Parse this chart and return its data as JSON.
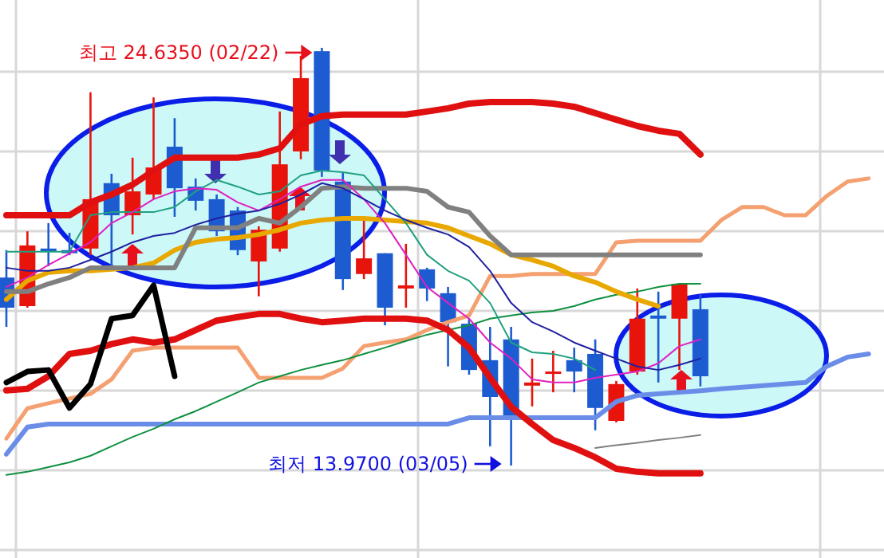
{
  "chart_data": {
    "type": "candlestick",
    "grid": true,
    "categories": [
      null,
      null,
      null,
      null,
      null,
      null,
      null,
      null,
      null,
      null,
      null,
      null,
      null,
      null,
      null,
      null,
      null,
      null,
      null,
      null,
      null,
      null,
      null,
      null,
      null,
      null,
      null,
      null,
      null,
      null,
      null,
      null,
      null,
      null,
      null,
      null,
      null,
      null,
      null,
      null,
      null,
      null
    ],
    "ohlc": [
      [
        18.77,
        19.47,
        17.51,
        18.0
      ],
      [
        18.04,
        19.95,
        18.0,
        19.59
      ],
      [
        19.51,
        20.16,
        19.06,
        19.43
      ],
      [
        19.47,
        19.91,
        19.34,
        19.39
      ],
      [
        19.51,
        23.5,
        19.34,
        20.77
      ],
      [
        21.18,
        21.42,
        19.02,
        20.36
      ],
      [
        20.36,
        21.83,
        19.87,
        20.97
      ],
      [
        20.89,
        23.37,
        20.77,
        21.58
      ],
      [
        22.11,
        22.84,
        20.32,
        21.05
      ],
      [
        21.09,
        21.3,
        20.48,
        20.73
      ],
      [
        20.77,
        20.89,
        19.83,
        19.95
      ],
      [
        20.48,
        20.57,
        19.34,
        19.47
      ],
      [
        19.18,
        20.08,
        18.29,
        19.99
      ],
      [
        19.51,
        23.01,
        19.43,
        21.66
      ],
      [
        21.99,
        24.43,
        21.79,
        23.86
      ],
      [
        24.55,
        24.635,
        21.34,
        21.5
      ],
      [
        21.22,
        21.46,
        18.45,
        18.73
      ],
      [
        18.86,
        20.24,
        18.73,
        19.26
      ],
      [
        19.39,
        19.39,
        17.55,
        18.0
      ],
      [
        18.49,
        19.63,
        18.0,
        18.57
      ],
      [
        18.98,
        19.02,
        18.17,
        18.49
      ],
      [
        18.37,
        18.53,
        16.5,
        17.63
      ],
      [
        17.59,
        17.72,
        16.29,
        16.41
      ],
      [
        16.66,
        17.51,
        14.46,
        15.72
      ],
      [
        17.19,
        17.51,
        13.97,
        15.15
      ],
      [
        16.01,
        16.7,
        15.48,
        16.09
      ],
      [
        16.33,
        16.9,
        15.84,
        16.37
      ],
      [
        16.66,
        16.98,
        15.84,
        16.37
      ],
      [
        16.82,
        17.19,
        14.87,
        15.44
      ],
      [
        15.11,
        16.13,
        15.07,
        16.05
      ],
      [
        16.37,
        18.49,
        16.29,
        17.72
      ],
      [
        17.8,
        18.41,
        16.09,
        17.72
      ],
      [
        17.72,
        18.61,
        16.41,
        18.61
      ],
      [
        17.96,
        18.33,
        15.99,
        16.25
      ],
      null,
      null,
      null,
      null,
      null,
      null,
      null,
      null
    ],
    "colors": [
      "#1c5cd0",
      "#e8140c",
      "#1c5cd0",
      "#1c5cd0",
      "#e8140c",
      "#1c5cd0",
      "#e8140c",
      "#e8140c",
      "#1c5cd0",
      "#1c5cd0",
      "#1c5cd0",
      "#1c5cd0",
      "#e8140c",
      "#e8140c",
      "#e8140c",
      "#1c5cd0",
      "#1c5cd0",
      "#e8140c",
      "#1c5cd0",
      "#e8140c",
      "#1c5cd0",
      "#1c5cd0",
      "#1c5cd0",
      "#1c5cd0",
      "#1c5cd0",
      "#e8140c",
      "#e8140c",
      "#1c5cd0",
      "#1c5cd0",
      "#e8140c",
      "#e8140c",
      "#1c5cd0",
      "#e8140c",
      "#1c5cd0",
      null,
      null,
      null,
      null,
      null,
      null,
      null,
      null
    ],
    "series": [
      {
        "type": "line",
        "color": "#f4a070",
        "values": [
          14.66,
          15.43,
          15.56,
          15.68,
          15.8,
          16.17,
          16.9,
          16.98,
          16.98,
          16.98,
          16.98,
          16.98,
          16.21,
          16.21,
          16.21,
          16.21,
          16.45,
          17.02,
          17.11,
          17.19,
          17.43,
          17.63,
          17.8,
          18.81,
          18.81,
          18.86,
          18.86,
          18.86,
          18.86,
          19.67,
          19.71,
          19.71,
          19.71,
          19.71,
          20.24,
          20.57,
          20.57,
          20.36,
          20.36,
          20.85,
          21.22,
          21.3
        ]
      },
      {
        "type": "line",
        "color": "#6a8ee8",
        "values": [
          14.26,
          14.95,
          15.03,
          15.03,
          15.03,
          15.03,
          15.03,
          15.03,
          15.03,
          15.03,
          15.03,
          15.03,
          15.03,
          15.03,
          15.03,
          15.03,
          15.03,
          15.03,
          15.03,
          15.03,
          15.03,
          15.03,
          15.19,
          15.19,
          15.19,
          15.19,
          15.19,
          15.19,
          15.19,
          15.6,
          15.76,
          15.8,
          15.84,
          15.88,
          15.93,
          15.97,
          16.01,
          16.05,
          16.09,
          16.5,
          16.74,
          16.82
        ]
      },
      {
        "type": "line",
        "color": "#109040",
        "values": [
          13.73,
          13.81,
          13.93,
          14.05,
          14.22,
          14.46,
          14.7,
          14.91,
          15.15,
          15.36,
          15.6,
          15.84,
          16.09,
          16.25,
          16.41,
          16.54,
          16.66,
          16.82,
          16.98,
          17.15,
          17.31,
          17.43,
          17.55,
          17.72,
          17.8,
          17.88,
          17.92,
          18.04,
          18.21,
          18.33,
          18.41,
          18.53,
          18.61,
          18.61,
          null,
          null,
          null,
          null,
          null,
          null,
          null,
          null
        ]
      },
      {
        "type": "line",
        "color": "#808080",
        "values": [
          null,
          null,
          null,
          null,
          null,
          null,
          null,
          null,
          null,
          null,
          null,
          null,
          null,
          null,
          null,
          null,
          null,
          null,
          null,
          null,
          null,
          null,
          null,
          null,
          null,
          null,
          null,
          null,
          14.42,
          14.49,
          14.55,
          14.62,
          14.68,
          14.75,
          null,
          null,
          null,
          null,
          null,
          null,
          null,
          null
        ]
      },
      {
        "type": "line",
        "color": "#e8a800",
        "values": [
          18.21,
          18.69,
          18.9,
          18.94,
          18.94,
          18.98,
          19.02,
          19.14,
          19.47,
          19.67,
          19.75,
          19.79,
          19.87,
          19.99,
          20.16,
          20.24,
          20.28,
          20.28,
          20.24,
          20.2,
          20.16,
          20.04,
          19.83,
          19.63,
          19.35,
          19.22,
          19.06,
          18.81,
          18.65,
          18.41,
          18.21,
          18.04,
          null,
          null,
          null,
          null,
          null,
          null,
          null,
          null,
          null,
          null
        ]
      },
      {
        "type": "line",
        "color": "#808080",
        "values": [
          18.41,
          18.41,
          18.61,
          18.77,
          19.02,
          19.02,
          19.02,
          19.02,
          19.02,
          20.04,
          20.04,
          20.04,
          20.28,
          20.16,
          20.57,
          21.05,
          21.09,
          21.05,
          21.05,
          21.05,
          20.97,
          20.57,
          20.44,
          19.83,
          19.35,
          19.35,
          19.35,
          19.35,
          19.35,
          19.35,
          19.35,
          19.35,
          19.35,
          19.35,
          null,
          null,
          null,
          null,
          null,
          null,
          null,
          null
        ]
      },
      {
        "type": "line",
        "color": "#20a080",
        "values": [
          19.43,
          19.43,
          19.43,
          19.43,
          20.36,
          20.44,
          20.44,
          20.44,
          20.57,
          20.97,
          21.26,
          21.09,
          20.89,
          20.97,
          21.38,
          21.5,
          21.46,
          21.38,
          20.77,
          20.16,
          19.35,
          18.94,
          18.69,
          18.12,
          17.11,
          16.86,
          16.82,
          16.7,
          16.41,
          null,
          null,
          null,
          null,
          null,
          null,
          null,
          null,
          null,
          null,
          null,
          null,
          null
        ]
      },
      {
        "type": "line",
        "color": "#e020c0",
        "values": [
          18.53,
          18.77,
          19.09,
          19.38,
          19.67,
          20.16,
          20.44,
          20.77,
          20.97,
          21.05,
          21.01,
          20.69,
          20.48,
          20.77,
          21.09,
          21.26,
          21.26,
          20.77,
          20.16,
          19.35,
          18.53,
          18.12,
          17.72,
          17.11,
          16.7,
          16.17,
          16.09,
          16.09,
          16.21,
          16.29,
          16.37,
          16.58,
          17.02,
          17.19,
          null,
          null,
          null,
          null,
          null,
          null,
          null,
          null
        ]
      },
      {
        "type": "line",
        "color": "#2020a0",
        "values": [
          19.02,
          18.94,
          18.94,
          19.02,
          19.22,
          19.43,
          19.67,
          19.83,
          19.91,
          20.12,
          20.28,
          20.4,
          20.48,
          20.65,
          20.89,
          21.18,
          21.05,
          20.77,
          20.48,
          20.24,
          20.04,
          19.87,
          19.55,
          18.94,
          18.12,
          17.63,
          17.39,
          17.11,
          16.9,
          16.7,
          16.5,
          16.41,
          16.54,
          16.7,
          null,
          null,
          null,
          null,
          null,
          null,
          null,
          null
        ]
      },
      {
        "type": "line",
        "color": "#e01010",
        "values": [
          20.36,
          20.36,
          20.36,
          20.36,
          20.69,
          20.89,
          21.14,
          21.5,
          21.83,
          21.83,
          21.83,
          21.83,
          21.91,
          22.07,
          22.68,
          22.89,
          22.93,
          22.93,
          22.93,
          22.93,
          23.01,
          23.09,
          23.21,
          23.25,
          23.25,
          23.25,
          23.21,
          23.13,
          22.97,
          22.8,
          22.64,
          22.52,
          22.44,
          21.91,
          null,
          null,
          null,
          null,
          null,
          null,
          null,
          null
        ]
      },
      {
        "type": "line",
        "color": "#e01010",
        "values": [
          15.89,
          15.93,
          16.25,
          16.82,
          16.9,
          17.07,
          17.19,
          17.11,
          17.19,
          17.43,
          17.67,
          17.76,
          17.84,
          17.84,
          17.72,
          17.63,
          17.67,
          17.72,
          17.72,
          17.72,
          17.67,
          17.43,
          16.98,
          16.21,
          15.47,
          15.03,
          14.62,
          14.42,
          14.18,
          13.89,
          13.81,
          13.77,
          13.77,
          13.77,
          null,
          null,
          null,
          null,
          null,
          null,
          null,
          null
        ]
      },
      {
        "type": "line",
        "color": "#000000",
        "values": [
          16.09,
          16.37,
          16.41,
          15.44,
          16.05,
          17.72,
          17.8,
          18.57,
          16.25,
          null,
          null,
          null,
          null,
          null,
          null,
          null,
          null,
          null,
          null,
          null,
          null,
          null,
          null,
          null,
          null,
          null,
          null,
          null,
          null,
          null,
          null,
          null,
          null,
          null,
          null,
          null,
          null,
          null,
          null,
          null,
          null,
          null
        ]
      }
    ],
    "annotations": [
      "최고 24.6350 (02/22)",
      "최저 13.9700 (03/05)"
    ]
  }
}
